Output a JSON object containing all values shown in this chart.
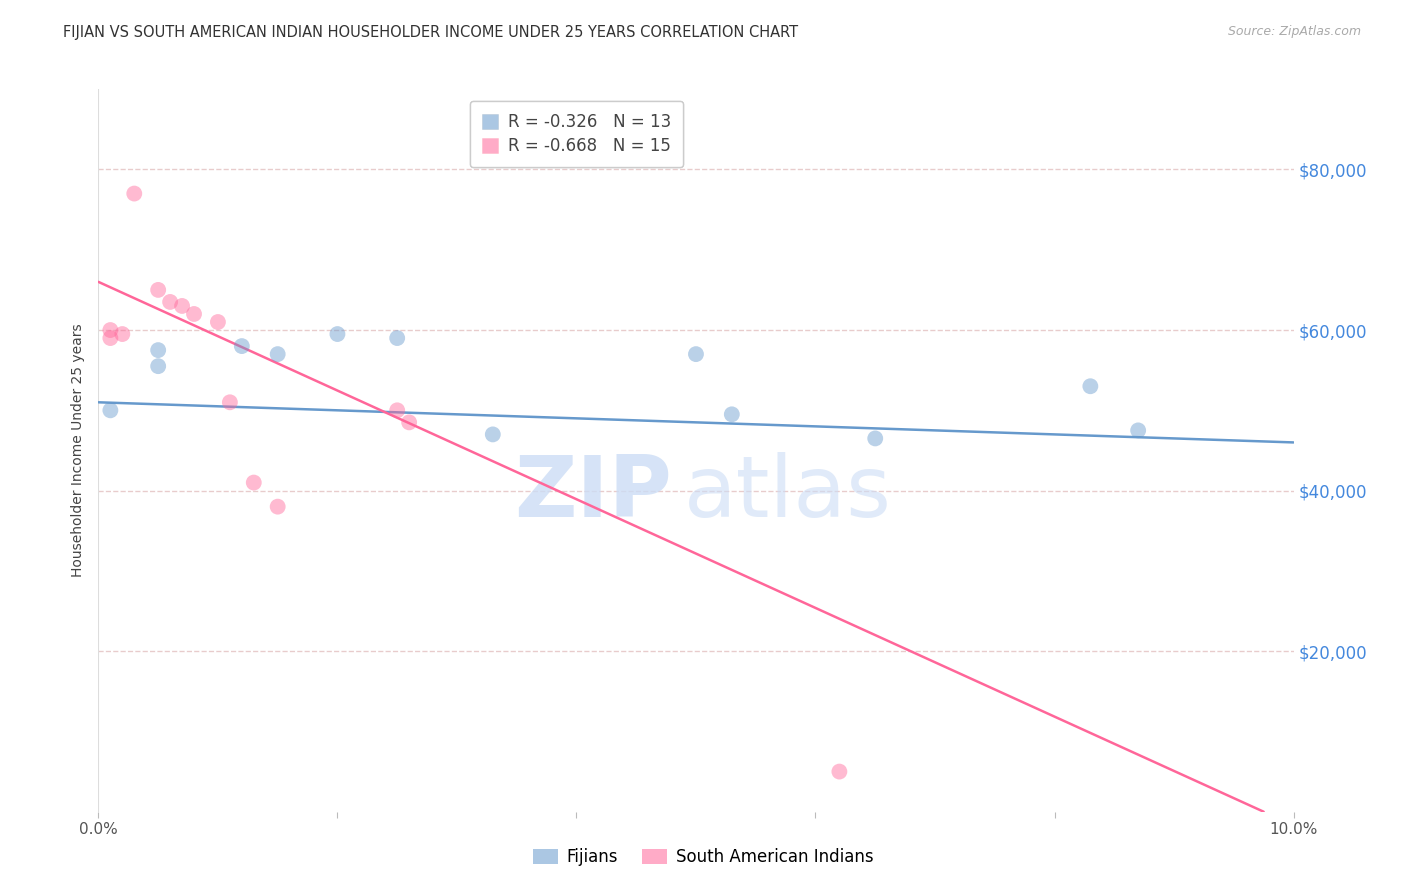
{
  "title": "FIJIAN VS SOUTH AMERICAN INDIAN HOUSEHOLDER INCOME UNDER 25 YEARS CORRELATION CHART",
  "source": "Source: ZipAtlas.com",
  "ylabel": "Householder Income Under 25 years",
  "watermark_top": "ZIP",
  "watermark_bot": "atlas",
  "legend_blue_r": "-0.326",
  "legend_blue_n": "13",
  "legend_pink_r": "-0.668",
  "legend_pink_n": "15",
  "legend_blue_label": "Fijians",
  "legend_pink_label": "South American Indians",
  "xlim": [
    0.0,
    0.1
  ],
  "ylim": [
    0,
    90000
  ],
  "yticks": [
    0,
    20000,
    40000,
    60000,
    80000
  ],
  "ytick_right_vals": [
    20000,
    40000,
    60000,
    80000
  ],
  "ytick_right_labels": [
    "$20,000",
    "$40,000",
    "$60,000",
    "$80,000"
  ],
  "xticks": [
    0.0,
    0.02,
    0.04,
    0.06,
    0.08,
    0.1
  ],
  "xtick_labels": [
    "0.0%",
    "",
    "",
    "",
    "",
    "10.0%"
  ],
  "blue_color": "#6699CC",
  "pink_color": "#FF6699",
  "blue_scatter_x": [
    0.001,
    0.005,
    0.005,
    0.012,
    0.015,
    0.02,
    0.025,
    0.033,
    0.05,
    0.053,
    0.065,
    0.083,
    0.087
  ],
  "blue_scatter_y": [
    50000,
    57500,
    55500,
    58000,
    57000,
    59500,
    59000,
    47000,
    57000,
    49500,
    46500,
    53000,
    47500
  ],
  "pink_scatter_x": [
    0.001,
    0.001,
    0.002,
    0.003,
    0.005,
    0.006,
    0.007,
    0.008,
    0.01,
    0.011,
    0.013,
    0.015,
    0.025,
    0.026,
    0.062
  ],
  "pink_scatter_y": [
    60000,
    59000,
    59500,
    77000,
    65000,
    63500,
    63000,
    62000,
    61000,
    51000,
    41000,
    38000,
    50000,
    48500,
    5000
  ],
  "blue_line_x": [
    0.0,
    0.1
  ],
  "blue_line_y": [
    51000,
    46000
  ],
  "pink_line_x": [
    0.0,
    0.0975
  ],
  "pink_line_y": [
    66000,
    0
  ],
  "background_color": "#FFFFFF",
  "grid_color": "#E8CCCC",
  "title_fontsize": 10.5,
  "ylabel_fontsize": 10,
  "tick_fontsize": 11,
  "source_fontsize": 9,
  "legend_fontsize": 12,
  "ytick_right_fontsize": 12,
  "scatter_size": 130,
  "scatter_alpha": 0.45,
  "line_width": 1.8
}
